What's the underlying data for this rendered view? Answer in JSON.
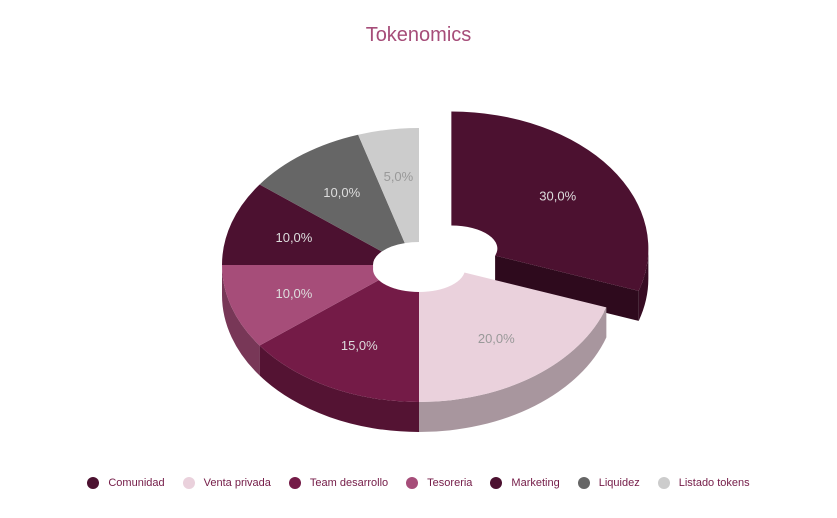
{
  "chart_data": {
    "type": "pie",
    "variant": "3d-donut",
    "title": "Tokenomics",
    "categories": [
      "Comunidad",
      "Venta privada",
      "Team desarrollo",
      "Tesoreria",
      "Marketing",
      "Liquidez",
      "Listado tokens"
    ],
    "values": [
      30.0,
      20.0,
      15.0,
      10.0,
      10.0,
      10.0,
      5.0
    ],
    "labels": [
      "30,0%",
      "20,0%",
      "15,0%",
      "10,0%",
      "10,0%",
      "10,0%",
      "5,0%"
    ],
    "colors": [
      "#4c1130",
      "#ead1dc",
      "#741b47",
      "#a64d79",
      "#4c1130",
      "#666666",
      "#cccccc"
    ],
    "label_colors": [
      "#dddddd",
      "#999999",
      "#dddddd",
      "#dddddd",
      "#dddddd",
      "#dddddd",
      "#999999"
    ],
    "exploded": "Comunidad",
    "legend_position": "bottom"
  }
}
